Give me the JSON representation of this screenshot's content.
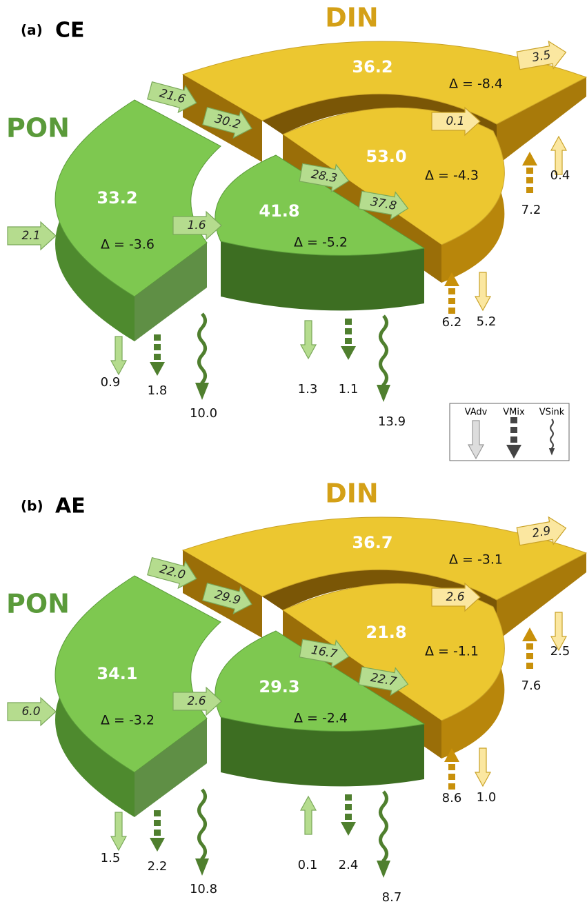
{
  "panels": [
    {
      "label": "(a)",
      "site": "CE",
      "din_label": "DIN",
      "pon_label": "PON",
      "din_outer": {
        "value": "36.2",
        "delta": "Δ = -8.4"
      },
      "din_inner": {
        "value": "53.0",
        "delta": "Δ = -4.3"
      },
      "pon_outer": {
        "value": "33.2",
        "delta": "Δ = -3.6"
      },
      "pon_inner": {
        "value": "41.8",
        "delta": "Δ = -5.2"
      },
      "fluxes": [
        "3.5",
        "0.1",
        "0.4",
        "7.2",
        "21.6",
        "30.2",
        "28.3",
        "37.8",
        "2.1",
        "1.6",
        "6.2",
        "5.2",
        "0.9",
        "1.8",
        "10.0",
        "1.3",
        "1.1",
        "13.9"
      ]
    },
    {
      "label": "(b)",
      "site": "AE",
      "din_label": "DIN",
      "pon_label": "PON",
      "din_outer": {
        "value": "36.7",
        "delta": "Δ = -3.1"
      },
      "din_inner": {
        "value": "21.8",
        "delta": "Δ = -1.1"
      },
      "pon_outer": {
        "value": "34.1",
        "delta": "Δ = -3.2"
      },
      "pon_inner": {
        "value": "29.3",
        "delta": "Δ = -2.4"
      },
      "fluxes": [
        "2.9",
        "2.6",
        "2.5",
        "7.6",
        "22.0",
        "29.9",
        "16.7",
        "22.7",
        "6.0",
        "2.6",
        "8.6",
        "1.0",
        "1.5",
        "2.2",
        "10.8",
        "0.1",
        "2.4",
        "8.7"
      ]
    }
  ],
  "legend": {
    "advection": "VAdv",
    "mixing": "VMix",
    "sinking": "VSink"
  }
}
